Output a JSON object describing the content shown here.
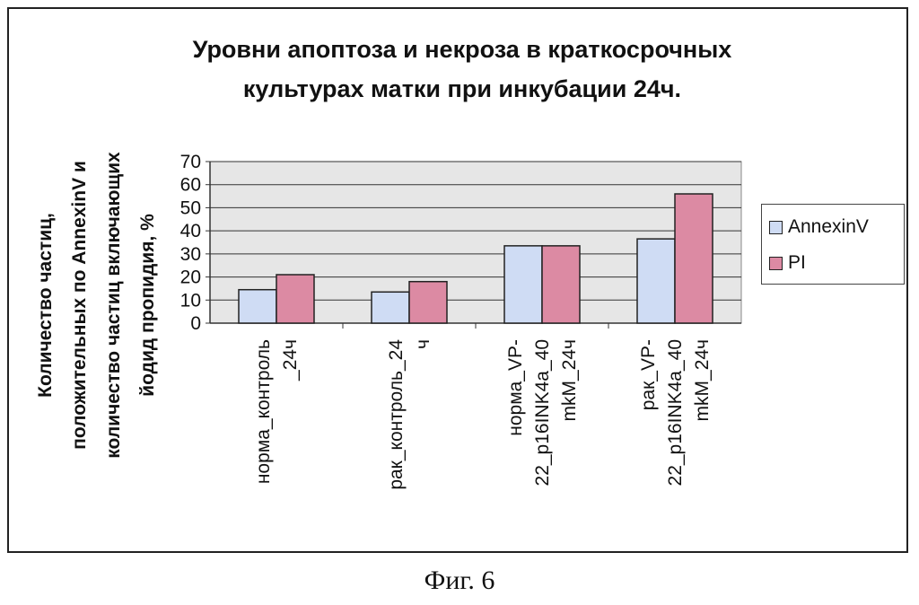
{
  "chart_data": {
    "type": "bar",
    "title": "Уровни апоптоза и некроза в краткосрочных\nкультурах матки при инкубации 24ч.",
    "ylabel": "Количество частиц,\nположительных по AnnexinV и\nколичество частиц включающих\nйодид пропидия, %",
    "xlabel": "",
    "ylim": [
      0,
      70
    ],
    "yticks": [
      "0",
      "10",
      "20",
      "30",
      "40",
      "50",
      "60",
      "70"
    ],
    "categories": [
      "норма_контроль\n_24ч",
      "рак_контроль_24\nч",
      "норма_VP-\n22_p16INK4a_40\nmkM_24ч",
      "рак_VP-\n22_p16INK4a_40\nmkM_24ч"
    ],
    "series": [
      {
        "name": "AnnexinV",
        "color": "#cfdcf4",
        "values": [
          14.5,
          13.5,
          33.5,
          36.5
        ]
      },
      {
        "name": "PI",
        "color": "#dc8aa3",
        "values": [
          21,
          18,
          33.5,
          56
        ]
      }
    ],
    "grid": true,
    "legend": "right",
    "plot_background": "#e6e6e6"
  },
  "caption": "Фиг. 6"
}
